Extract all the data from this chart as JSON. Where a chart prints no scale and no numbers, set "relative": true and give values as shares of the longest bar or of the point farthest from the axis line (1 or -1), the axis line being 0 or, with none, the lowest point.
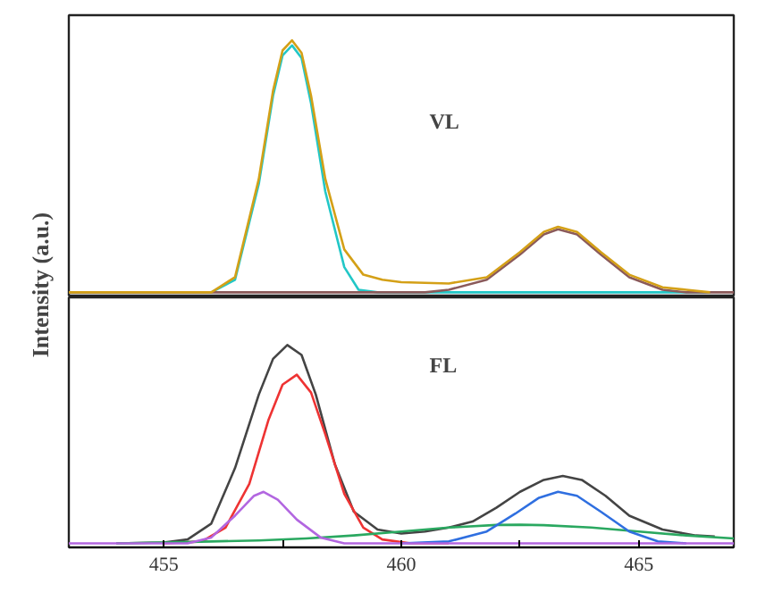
{
  "chart_data": [
    {
      "type": "line",
      "ylabel": "Intensity (a.u.)",
      "relative": true,
      "xlim": [
        453,
        467
      ],
      "tick_labels": false,
      "annotations": [
        "VL"
      ],
      "series": [
        {
          "color": "#22c7c7",
          "x": [
            453,
            456,
            456.5,
            457,
            457.3,
            457.5,
            457.7,
            457.9,
            458.1,
            458.4,
            458.8,
            459.1,
            459.5,
            466.5
          ],
          "values": [
            0,
            0,
            0.05,
            0.43,
            0.78,
            0.94,
            0.98,
            0.93,
            0.75,
            0.4,
            0.1,
            0.01,
            0,
            0
          ]
        },
        {
          "color": "#8b5a5a",
          "x": [
            453,
            460.5,
            461,
            461.8,
            462.5,
            463,
            463.3,
            463.7,
            464.2,
            464.8,
            465.5,
            466,
            467
          ],
          "values": [
            0,
            0,
            0.01,
            0.05,
            0.15,
            0.23,
            0.25,
            0.23,
            0.15,
            0.06,
            0.01,
            0,
            0
          ]
        },
        {
          "color": "#d4a017",
          "x": [
            453,
            454,
            455,
            456,
            456.5,
            457,
            457.3,
            457.5,
            457.7,
            457.9,
            458.1,
            458.4,
            458.8,
            459.2,
            459.6,
            460,
            461,
            461.8,
            462.5,
            463,
            463.3,
            463.7,
            464.2,
            464.8,
            465.5,
            466,
            466.5
          ],
          "values": [
            0,
            0,
            0,
            0,
            0.06,
            0.45,
            0.8,
            0.96,
            1.0,
            0.95,
            0.78,
            0.45,
            0.17,
            0.07,
            0.05,
            0.04,
            0.035,
            0.06,
            0.16,
            0.24,
            0.26,
            0.24,
            0.16,
            0.07,
            0.02,
            0.01,
            0
          ]
        }
      ]
    },
    {
      "type": "line",
      "relative": true,
      "xlim": [
        453,
        467
      ],
      "xticks": [
        455,
        {
          "value": 457.5,
          "label": null
        },
        460,
        {
          "value": 462.5,
          "label": null
        },
        465
      ],
      "tick_labels": "x",
      "annotations": [
        "FL"
      ],
      "series": [
        {
          "color": "#444444",
          "x": [
            454,
            455,
            455.5,
            456,
            456.5,
            457,
            457.3,
            457.6,
            457.9,
            458.2,
            458.6,
            459,
            459.5,
            460,
            460.5,
            461,
            461.5,
            462,
            462.5,
            463,
            463.4,
            463.8,
            464.3,
            464.8,
            465.5,
            466.2,
            466.6
          ],
          "values": [
            0,
            0.005,
            0.02,
            0.1,
            0.38,
            0.75,
            0.93,
            1.0,
            0.95,
            0.75,
            0.4,
            0.16,
            0.07,
            0.05,
            0.06,
            0.08,
            0.11,
            0.18,
            0.26,
            0.32,
            0.34,
            0.32,
            0.24,
            0.14,
            0.07,
            0.04,
            0.035
          ]
        },
        {
          "color": "#ee3333",
          "x": [
            455,
            455.8,
            456.3,
            456.8,
            457.2,
            457.5,
            457.8,
            458.1,
            458.4,
            458.8,
            459.2,
            459.6,
            460.2,
            461
          ],
          "values": [
            0,
            0.01,
            0.08,
            0.3,
            0.62,
            0.8,
            0.85,
            0.76,
            0.55,
            0.25,
            0.08,
            0.02,
            0,
            0
          ]
        },
        {
          "color": "#2aa860",
          "x": [
            454,
            455,
            456,
            457,
            458,
            459,
            460,
            461,
            462,
            462.5,
            463,
            464,
            465,
            466,
            467
          ],
          "values": [
            0,
            0.005,
            0.01,
            0.015,
            0.025,
            0.04,
            0.06,
            0.08,
            0.093,
            0.094,
            0.092,
            0.08,
            0.06,
            0.04,
            0.025
          ]
        },
        {
          "color": "#2f6fe0",
          "x": [
            460,
            461,
            461.8,
            462.4,
            462.9,
            463.3,
            463.7,
            464.2,
            464.8,
            465.4,
            466
          ],
          "values": [
            0,
            0.01,
            0.06,
            0.15,
            0.23,
            0.26,
            0.24,
            0.16,
            0.06,
            0.01,
            0
          ]
        },
        {
          "color": "#b266e0",
          "x": [
            453,
            455.5,
            456,
            456.5,
            456.9,
            457.1,
            457.4,
            457.8,
            458.3,
            458.8,
            467
          ],
          "values": [
            0,
            0,
            0.03,
            0.14,
            0.24,
            0.26,
            0.22,
            0.12,
            0.03,
            0,
            0
          ]
        }
      ]
    }
  ]
}
